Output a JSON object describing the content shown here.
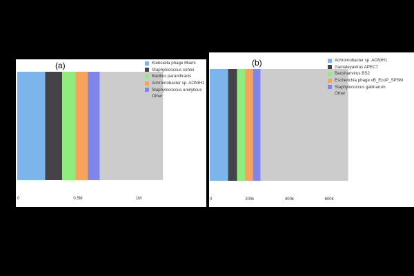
{
  "chart_data": [
    {
      "type": "bar",
      "orientation": "horizontal-stacked",
      "title": "(a)",
      "xlabel": "",
      "ylabel": "",
      "xlim": [
        0,
        1250000
      ],
      "xticks": [
        {
          "value": 0,
          "label": "0"
        },
        {
          "value": 500000,
          "label": "0.5M"
        },
        {
          "value": 1000000,
          "label": "1M"
        }
      ],
      "legend_position": "right",
      "grid": false,
      "series": [
        {
          "name": "Klebsiella phage Miami",
          "value": 230000,
          "color": "#7cb5ec"
        },
        {
          "name": "Staphylococcus cohnii",
          "value": 140000,
          "color": "#434348"
        },
        {
          "name": "Bacillus paranthracis",
          "value": 110000,
          "color": "#90ed7d"
        },
        {
          "name": "Achromobacter sp. AONIH1",
          "value": 100000,
          "color": "#f7a35c"
        },
        {
          "name": "Staphylococcus ureilyticus",
          "value": 100000,
          "color": "#8085e9"
        },
        {
          "name": "Other",
          "value": 520000,
          "color": "#cccccc"
        }
      ]
    },
    {
      "type": "bar",
      "orientation": "horizontal-stacked",
      "title": "(b)",
      "xlabel": "",
      "ylabel": "",
      "xlim": [
        0,
        700000
      ],
      "xticks": [
        {
          "value": 0,
          "label": "0"
        },
        {
          "value": 200000,
          "label": "200k"
        },
        {
          "value": 400000,
          "label": "400k"
        },
        {
          "value": 600000,
          "label": "600k"
        }
      ],
      "legend_position": "right",
      "grid": false,
      "series": [
        {
          "name": "Achromobacter sp. AONIH1",
          "value": 92000,
          "color": "#7cb5ec"
        },
        {
          "name": "Gamaleyavirus APEC7",
          "value": 45000,
          "color": "#434348"
        },
        {
          "name": "Baoshanvirus BS2",
          "value": 40000,
          "color": "#90ed7d"
        },
        {
          "name": "Escherichia phage vB_EcoP_SPSM",
          "value": 40000,
          "color": "#f7a35c"
        },
        {
          "name": "Staphylococcus gallinarum",
          "value": 38000,
          "color": "#8085e9"
        },
        {
          "name": "Other",
          "value": 440000,
          "color": "#cccccc"
        }
      ]
    }
  ]
}
